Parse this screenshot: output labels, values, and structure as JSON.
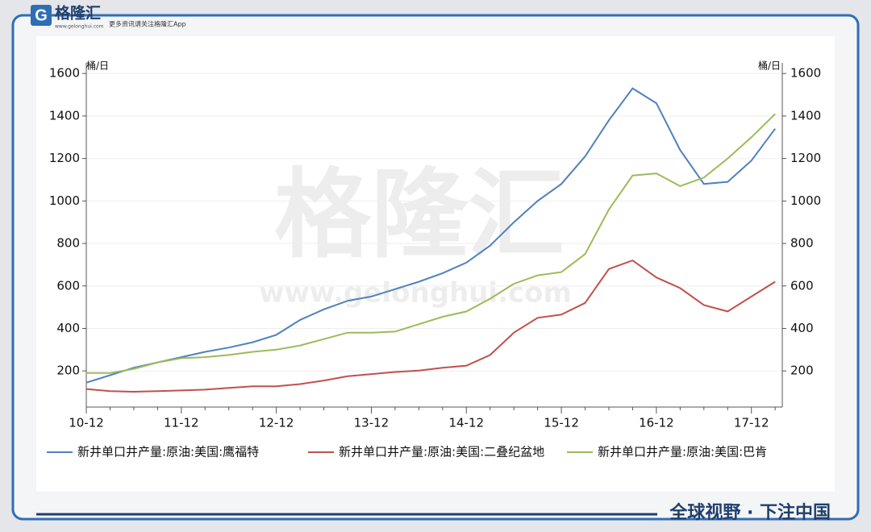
{
  "header": {
    "logo": "格隆汇",
    "site": "www.gelonghui.com",
    "slogan": "更多资讯请关注格隆汇App"
  },
  "footer": "全球视野 · 下注中国",
  "chart_data": {
    "type": "line",
    "watermark": {
      "text": "格隆汇",
      "url": "www.gelonghui.com"
    },
    "y_label": "桶/日",
    "y2_label": "桶/日",
    "categories": [
      "10-12",
      null,
      null,
      null,
      "11-12",
      null,
      null,
      null,
      "12-12",
      null,
      null,
      null,
      "13-12",
      null,
      null,
      null,
      "14-12",
      null,
      null,
      null,
      "15-12",
      null,
      null,
      null,
      "16-12",
      null,
      null,
      null,
      "17-12",
      null
    ],
    "series": [
      {
        "name": "新井单口井产量:原油:美国:鹰福特",
        "color": "#4f81bd",
        "values": [
          145,
          180,
          215,
          240,
          265,
          290,
          310,
          335,
          370,
          440,
          490,
          530,
          550,
          585,
          620,
          660,
          710,
          790,
          900,
          1000,
          1080,
          1210,
          1380,
          1530,
          1460,
          1240,
          1080,
          1090,
          1190,
          1340
        ]
      },
      {
        "name": "新井单口井产量:原油:美国:二叠纪盆地",
        "color": "#c0504d",
        "values": [
          115,
          105,
          102,
          105,
          108,
          112,
          120,
          128,
          128,
          138,
          155,
          175,
          185,
          195,
          202,
          215,
          225,
          275,
          380,
          450,
          465,
          520,
          680,
          720,
          640,
          590,
          510,
          480,
          550,
          620
        ]
      },
      {
        "name": "新井单口井产量:原油:美国:巴肯",
        "color": "#9bbb59",
        "values": [
          190,
          190,
          210,
          240,
          260,
          265,
          275,
          290,
          300,
          320,
          350,
          380,
          380,
          385,
          420,
          455,
          480,
          540,
          610,
          650,
          665,
          750,
          960,
          1120,
          1130,
          1070,
          1110,
          1200,
          1300,
          1410
        ]
      }
    ],
    "ylim": [
      30,
      1650
    ],
    "yticks": [
      200,
      400,
      600,
      800,
      1000,
      1200,
      1400,
      1600
    ],
    "y2lim": [
      30,
      1650
    ],
    "y2ticks": [
      200,
      400,
      600,
      800,
      1000,
      1200,
      1400,
      1600
    ],
    "grid": true
  }
}
